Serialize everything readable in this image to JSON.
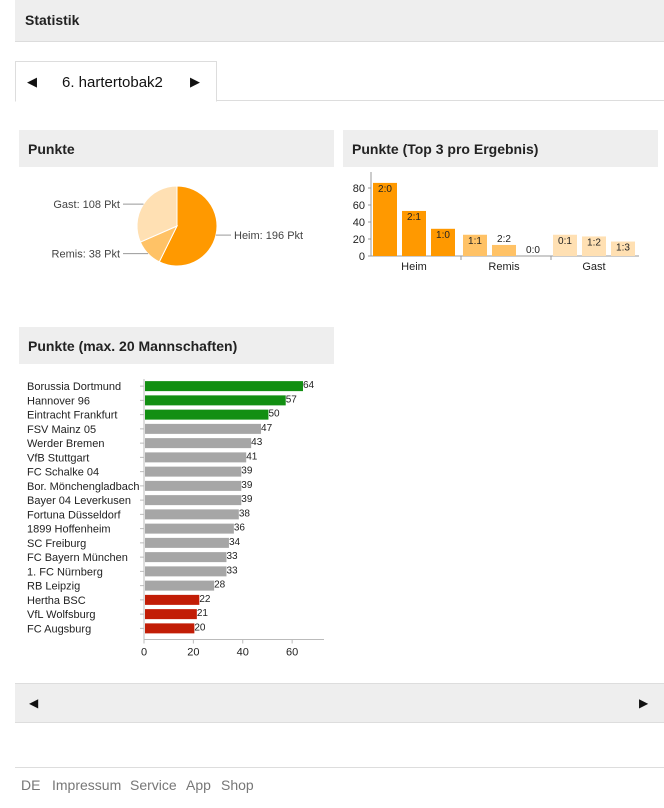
{
  "header": {
    "title": "Statistik"
  },
  "nav": {
    "prev_icon": "◀",
    "next_icon": "▶",
    "current": "6. hartertobak2"
  },
  "panels": {
    "pie_title": "Punkte",
    "top3_title": "Punkte (Top 3 pro Ergebnis)",
    "teams_title": "Punkte (max. 20 Mannschaften)"
  },
  "colors": {
    "heim": "#ff9900",
    "remis": "#ffc266",
    "gast": "#ffe0b3",
    "top": "#128f12",
    "mid": "#a6a6a6",
    "bottom": "#c21d06"
  },
  "chart_data": [
    {
      "type": "pie",
      "title": "Punkte",
      "slices": [
        {
          "name": "Heim",
          "value": 196,
          "label": "Heim: 196 Pkt"
        },
        {
          "name": "Remis",
          "value": 38,
          "label": "Remis: 38 Pkt"
        },
        {
          "name": "Gast",
          "value": 108,
          "label": "Gast: 108 Pkt"
        }
      ]
    },
    {
      "type": "bar",
      "title": "Punkte (Top 3 pro Ergebnis)",
      "groups": [
        "Heim",
        "Remis",
        "Gast"
      ],
      "bars": [
        {
          "group": "Heim",
          "label": "2:0",
          "value": 86
        },
        {
          "group": "Heim",
          "label": "2:1",
          "value": 53
        },
        {
          "group": "Heim",
          "label": "1:0",
          "value": 32
        },
        {
          "group": "Remis",
          "label": "1:1",
          "value": 25
        },
        {
          "group": "Remis",
          "label": "2:2",
          "value": 13
        },
        {
          "group": "Remis",
          "label": "0:0",
          "value": 0
        },
        {
          "group": "Gast",
          "label": "0:1",
          "value": 25
        },
        {
          "group": "Gast",
          "label": "1:2",
          "value": 23
        },
        {
          "group": "Gast",
          "label": "1:3",
          "value": 17
        }
      ],
      "yticks": [
        0,
        20,
        40,
        60,
        80
      ],
      "ylim": [
        0,
        90
      ]
    },
    {
      "type": "bar",
      "orientation": "horizontal",
      "title": "Punkte (max. 20 Mannschaften)",
      "categories": [
        "Borussia Dortmund",
        "Hannover 96",
        "Eintracht Frankfurt",
        "FSV Mainz 05",
        "Werder Bremen",
        "VfB Stuttgart",
        "FC Schalke 04",
        "Bor. Mönchengladbach",
        "Bayer 04 Leverkusen",
        "Fortuna Düsseldorf",
        "1899 Hoffenheim",
        "SC Freiburg",
        "FC Bayern München",
        "1. FC Nürnberg",
        "RB Leipzig",
        "Hertha BSC",
        "VfL Wolfsburg",
        "FC Augsburg"
      ],
      "values": [
        64,
        57,
        50,
        47,
        43,
        41,
        39,
        39,
        39,
        38,
        36,
        34,
        33,
        33,
        28,
        22,
        21,
        20
      ],
      "status": [
        "top",
        "top",
        "top",
        "mid",
        "mid",
        "mid",
        "mid",
        "mid",
        "mid",
        "mid",
        "mid",
        "mid",
        "mid",
        "mid",
        "mid",
        "bottom",
        "bottom",
        "bottom"
      ],
      "xticks": [
        0,
        20,
        40,
        60
      ],
      "xlim": [
        0,
        74
      ]
    }
  ],
  "footer": {
    "links": [
      "DE",
      "Impressum",
      "Service",
      "App",
      "Shop"
    ]
  }
}
